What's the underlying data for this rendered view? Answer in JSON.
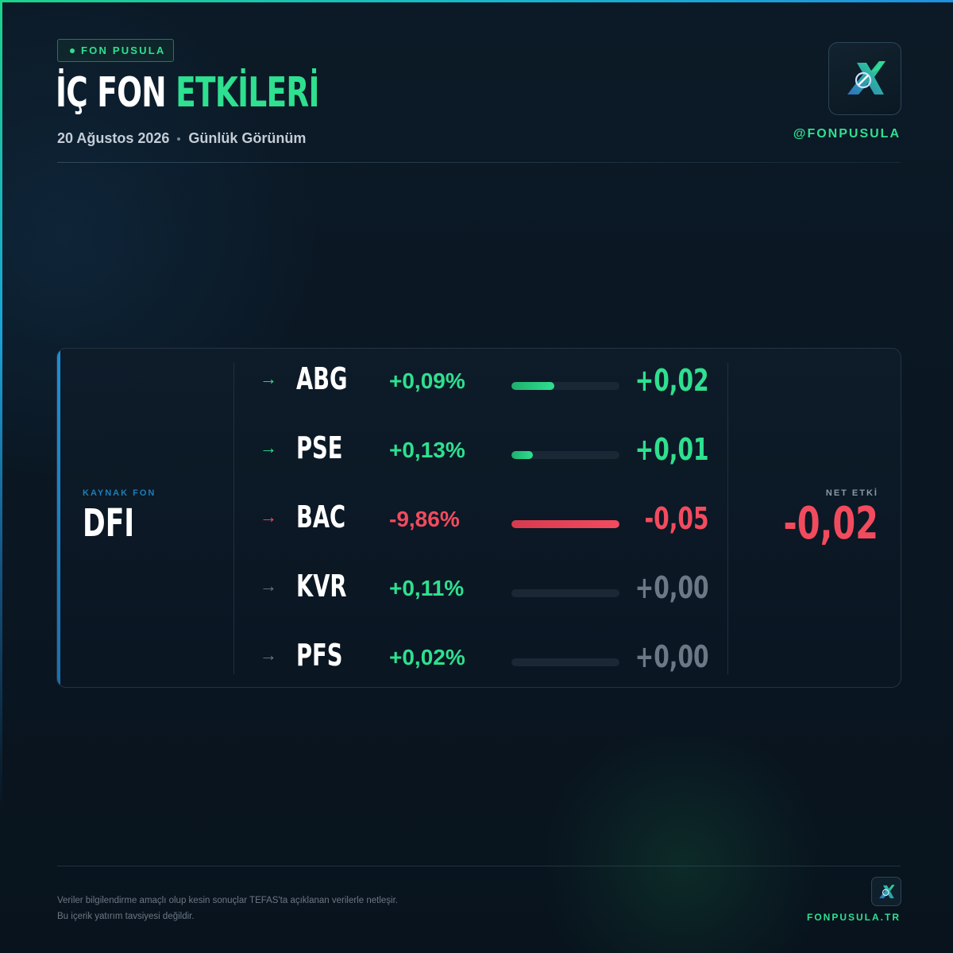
{
  "brand": {
    "tag": "FON PUSULA",
    "handle": "@FONPUSULA",
    "site": "FONPUSULA.TR"
  },
  "header": {
    "title_part1": "İÇ FON",
    "title_part2": "ETKİLERİ",
    "date": "20 Ağustos 2026",
    "view": "Günlük Görünüm"
  },
  "source": {
    "label": "KAYNAK FON",
    "name": "DFI"
  },
  "holdings": [
    {
      "arrow": "→",
      "code": "ABG",
      "change": "+0,09%",
      "impact": "+0,02",
      "bar_fraction": 0.4,
      "trend": "up"
    },
    {
      "arrow": "→",
      "code": "PSE",
      "change": "+0,13%",
      "impact": "+0,01",
      "bar_fraction": 0.2,
      "trend": "up"
    },
    {
      "arrow": "→",
      "code": "BAC",
      "change": "-9,86%",
      "impact": "-0,05",
      "bar_fraction": 1.0,
      "trend": "down"
    },
    {
      "arrow": "→",
      "code": "KVR",
      "change": "+0,11%",
      "impact": "+0,00",
      "bar_fraction": 0.0,
      "trend": "neutral"
    },
    {
      "arrow": "→",
      "code": "PFS",
      "change": "+0,02%",
      "impact": "+0,00",
      "bar_fraction": 0.0,
      "trend": "neutral"
    }
  ],
  "net": {
    "label": "NET ETKİ",
    "value": "-0,02"
  },
  "disclaimer": {
    "line1": "Veriler bilgilendirme amaçlı olup kesin sonuçlar TEFAS'ta açıklanan verilerle netleşir.",
    "line2": "Bu içerik yatırım tavsiyesi değildir."
  },
  "colors": {
    "positive": "#2ee08f",
    "negative": "#f24b5e",
    "neutral": "#6b7885",
    "accent_blue": "#1e8fd6"
  },
  "icons": {
    "logo": "compass-arrow-logo-icon",
    "row_arrow": "arrow-right-icon"
  }
}
